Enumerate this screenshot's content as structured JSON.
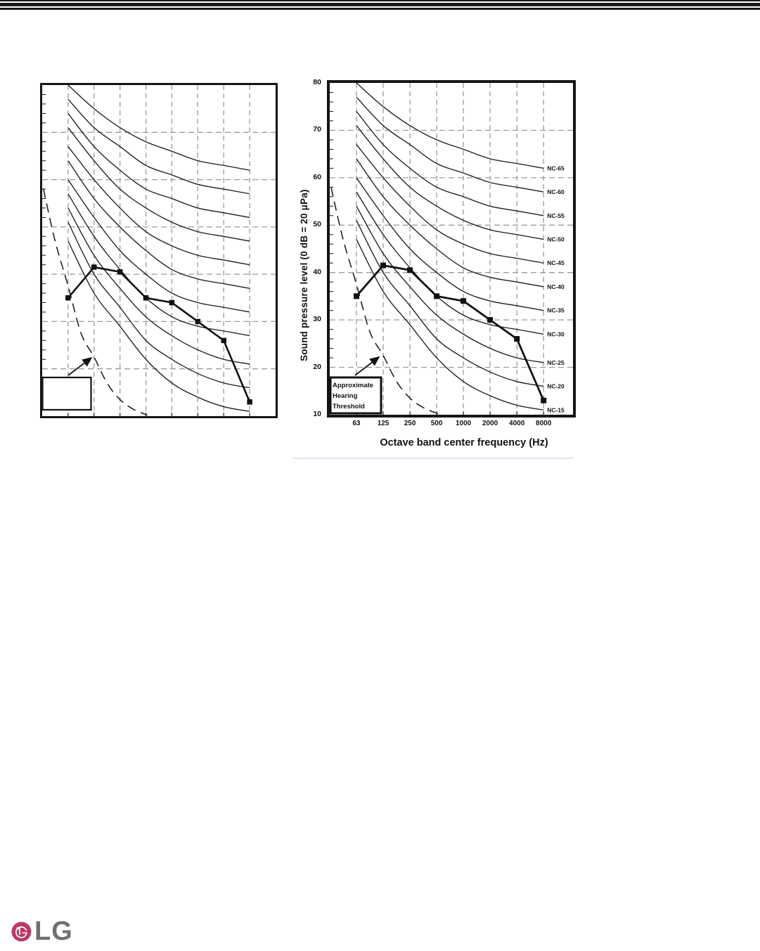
{
  "page": {
    "background": "#ffffff",
    "top_bars": {
      "color": "#1a1a1a",
      "count": 3
    }
  },
  "footer": {
    "logo_text": "LG",
    "logo_symbol": "lg-face-symbol",
    "logo_symbol_color": "#b93a64",
    "logo_text_color": "#6e7073"
  },
  "chart_data": [
    {
      "id": "nc-chart-unlabeled",
      "type": "line",
      "title": "",
      "xlabel": "",
      "ylabel": "",
      "x_categories": [
        "63",
        "125",
        "250",
        "500",
        "1000",
        "2000",
        "4000",
        "8000"
      ],
      "x_tick_labels_visible": false,
      "y_tick_labels": [],
      "ylim": [
        10,
        80
      ],
      "y_gridlines_db": [
        20,
        30,
        40,
        50,
        60,
        70
      ],
      "grid": "dashed",
      "series": [
        {
          "name": "measured-sound-pressure-level",
          "marker": "filled-square",
          "color": "#111111",
          "values": [
            35,
            41.5,
            40.5,
            35,
            34,
            30,
            26,
            13
          ]
        }
      ],
      "nc_labels_visible": false,
      "nc_curves": [
        {
          "label": "",
          "nc": 65,
          "values": [
            80,
            75,
            71,
            68,
            66,
            64,
            63,
            62
          ]
        },
        {
          "label": "",
          "nc": 60,
          "values": [
            77,
            71,
            67,
            63,
            61,
            59,
            58,
            57
          ]
        },
        {
          "label": "",
          "nc": 55,
          "values": [
            74,
            67,
            62,
            58,
            56,
            54,
            53,
            52
          ]
        },
        {
          "label": "",
          "nc": 50,
          "values": [
            71,
            64,
            58,
            54,
            51,
            49,
            48,
            47
          ]
        },
        {
          "label": "",
          "nc": 45,
          "values": [
            67,
            60,
            54,
            49,
            46,
            44,
            43,
            42
          ]
        },
        {
          "label": "",
          "nc": 40,
          "values": [
            64,
            56,
            50,
            45,
            41,
            39,
            38,
            37
          ]
        },
        {
          "label": "",
          "nc": 35,
          "values": [
            60,
            52,
            45,
            40,
            36,
            34,
            33,
            32
          ]
        },
        {
          "label": "",
          "nc": 30,
          "values": [
            57,
            48,
            41,
            35,
            31,
            29,
            28,
            27
          ]
        },
        {
          "label": "",
          "nc": 25,
          "values": [
            54,
            44,
            37,
            31,
            27,
            24,
            22,
            21
          ]
        },
        {
          "label": "",
          "nc": 20,
          "values": [
            51,
            40,
            33,
            26,
            22,
            19,
            17,
            16
          ]
        },
        {
          "label": "",
          "nc": 15,
          "values": [
            47,
            36,
            29,
            22,
            17,
            14,
            12,
            11
          ]
        }
      ],
      "hearing_threshold": {
        "box_text": [],
        "style": "dashed",
        "points_octave_db": [
          [
            -0.95,
            58
          ],
          [
            -0.5,
            47
          ],
          [
            0,
            37.5
          ],
          [
            0.5,
            27.5
          ],
          [
            1,
            22.5
          ],
          [
            1.5,
            17
          ],
          [
            2,
            13.5
          ],
          [
            2.5,
            11.5
          ],
          [
            3.05,
            10.2
          ]
        ]
      }
    },
    {
      "id": "nc-chart-labeled",
      "type": "line",
      "title": "",
      "xlabel": "Octave band center frequency (Hz)",
      "ylabel": "Sound pressure level (0 dB = 20 μPa)",
      "x_categories": [
        "63",
        "125",
        "250",
        "500",
        "1000",
        "2000",
        "4000",
        "8000"
      ],
      "x_tick_labels_visible": true,
      "y_tick_labels": [
        "80",
        "70",
        "60",
        "50",
        "40",
        "30",
        "20",
        "10"
      ],
      "ylim": [
        10,
        80
      ],
      "y_gridlines_db": [
        20,
        30,
        40,
        50,
        60,
        70
      ],
      "grid": "dashed",
      "series": [
        {
          "name": "measured-sound-pressure-level",
          "marker": "filled-square",
          "color": "#111111",
          "values": [
            35,
            41.5,
            40.5,
            35,
            34,
            30,
            26,
            13
          ]
        }
      ],
      "nc_labels_visible": true,
      "nc_curves": [
        {
          "label": "NC-65",
          "nc": 65,
          "values": [
            80,
            75,
            71,
            68,
            66,
            64,
            63,
            62
          ]
        },
        {
          "label": "NC-60",
          "nc": 60,
          "values": [
            77,
            71,
            67,
            63,
            61,
            59,
            58,
            57
          ]
        },
        {
          "label": "NC-55",
          "nc": 55,
          "values": [
            74,
            67,
            62,
            58,
            56,
            54,
            53,
            52
          ]
        },
        {
          "label": "NC-50",
          "nc": 50,
          "values": [
            71,
            64,
            58,
            54,
            51,
            49,
            48,
            47
          ]
        },
        {
          "label": "NC-45",
          "nc": 45,
          "values": [
            67,
            60,
            54,
            49,
            46,
            44,
            43,
            42
          ]
        },
        {
          "label": "NC-40",
          "nc": 40,
          "values": [
            64,
            56,
            50,
            45,
            41,
            39,
            38,
            37
          ]
        },
        {
          "label": "NC-35",
          "nc": 35,
          "values": [
            60,
            52,
            45,
            40,
            36,
            34,
            33,
            32
          ]
        },
        {
          "label": "NC-30",
          "nc": 30,
          "values": [
            57,
            48,
            41,
            35,
            31,
            29,
            28,
            27
          ]
        },
        {
          "label": "NC-25",
          "nc": 25,
          "values": [
            54,
            44,
            37,
            31,
            27,
            24,
            22,
            21
          ]
        },
        {
          "label": "NC-20",
          "nc": 20,
          "values": [
            51,
            40,
            33,
            26,
            22,
            19,
            17,
            16
          ]
        },
        {
          "label": "NC-15",
          "nc": 15,
          "values": [
            47,
            36,
            29,
            22,
            17,
            14,
            12,
            11
          ]
        }
      ],
      "hearing_threshold": {
        "box_text": [
          "Approximate",
          "Hearing",
          "Threshold"
        ],
        "style": "dashed",
        "points_octave_db": [
          [
            -0.95,
            58
          ],
          [
            -0.5,
            47
          ],
          [
            0,
            37.5
          ],
          [
            0.5,
            27.5
          ],
          [
            1,
            22.5
          ],
          [
            1.5,
            17
          ],
          [
            2,
            13.5
          ],
          [
            2.5,
            11.5
          ],
          [
            3.05,
            10.2
          ]
        ]
      }
    }
  ]
}
